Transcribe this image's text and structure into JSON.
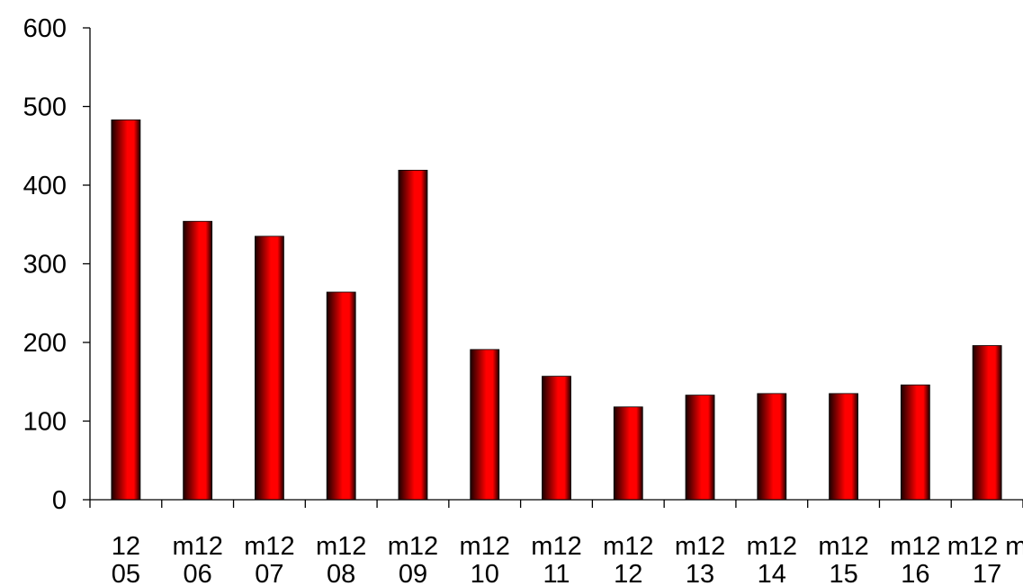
{
  "chart_data": {
    "type": "bar",
    "title": "",
    "xlabel": "",
    "ylabel": "",
    "ylim": [
      0,
      600
    ],
    "yticks": [
      0,
      100,
      200,
      300,
      400,
      500,
      600
    ],
    "grid": false,
    "legend": "none",
    "categories": [
      [
        "12",
        "05"
      ],
      [
        "m12",
        "06"
      ],
      [
        "m12",
        "07"
      ],
      [
        "m12",
        "08"
      ],
      [
        "m12",
        "09"
      ],
      [
        "m12",
        "10"
      ],
      [
        "m12",
        "11"
      ],
      [
        "m12",
        "12"
      ],
      [
        "m12",
        "13"
      ],
      [
        "m12",
        "14"
      ],
      [
        "m12",
        "15"
      ],
      [
        "m12",
        "16"
      ],
      [
        "m12 m",
        "17"
      ]
    ],
    "values": [
      483,
      354,
      335,
      264,
      419,
      191,
      157,
      118,
      133,
      135,
      135,
      146,
      196
    ],
    "colors": {
      "bar": "#ff0000",
      "bar_dark": "#1a0000",
      "axis": "#000000"
    }
  }
}
